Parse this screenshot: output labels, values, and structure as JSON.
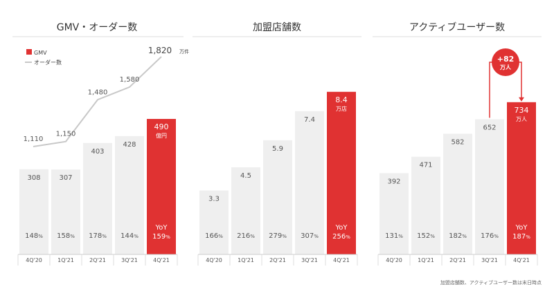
{
  "colors": {
    "highlight": "#e03232",
    "bar": "#efefef",
    "line": "#c8c8c8",
    "text": "#333333",
    "highlight_text": "#ffffff"
  },
  "footnote": "加盟店舗数、アクティブユーザー数は末日時点",
  "chart_data": [
    {
      "type": "bar",
      "title": "GMV・オーダー数",
      "categories": [
        "4Q'20",
        "1Q'21",
        "2Q'21",
        "3Q'21",
        "4Q'21"
      ],
      "series": [
        {
          "name": "GMV",
          "values": [
            308,
            307,
            403,
            428,
            490
          ],
          "value_labels": [
            "308",
            "307",
            "403",
            "428",
            "490"
          ],
          "last_unit": "億円"
        },
        {
          "name": "オーダー数",
          "type": "line",
          "values": [
            1110,
            1150,
            1480,
            1580,
            1820
          ],
          "value_labels": [
            "1,110",
            "1,150",
            "1,480",
            "1,580",
            "1,820"
          ],
          "last_unit": "万件"
        }
      ],
      "growth": [
        "148",
        "158",
        "178",
        "144",
        "159"
      ],
      "growth_unit": "%",
      "yoy_label": "YoY",
      "legend": "top-left"
    },
    {
      "type": "bar",
      "title": "加盟店舗数",
      "categories": [
        "4Q'20",
        "1Q'21",
        "2Q'21",
        "3Q'21",
        "4Q'21"
      ],
      "values": [
        3.3,
        4.5,
        5.9,
        7.4,
        8.4
      ],
      "value_labels": [
        "3.3",
        "4.5",
        "5.9",
        "7.4",
        "8.4"
      ],
      "last_unit": "万店",
      "growth": [
        "166",
        "216",
        "279",
        "307",
        "256"
      ],
      "growth_unit": "%",
      "yoy_label": "YoY"
    },
    {
      "type": "bar",
      "title": "アクティブユーザー数",
      "categories": [
        "4Q'20",
        "1Q'21",
        "2Q'21",
        "3Q'21",
        "4Q'21"
      ],
      "values": [
        392,
        471,
        582,
        652,
        734
      ],
      "value_labels": [
        "392",
        "471",
        "582",
        "652",
        "734"
      ],
      "last_unit": "万人",
      "growth": [
        "131",
        "152",
        "182",
        "176",
        "187"
      ],
      "growth_unit": "%",
      "yoy_label": "YoY",
      "callout": {
        "value": "+82",
        "unit": "万人"
      }
    }
  ]
}
